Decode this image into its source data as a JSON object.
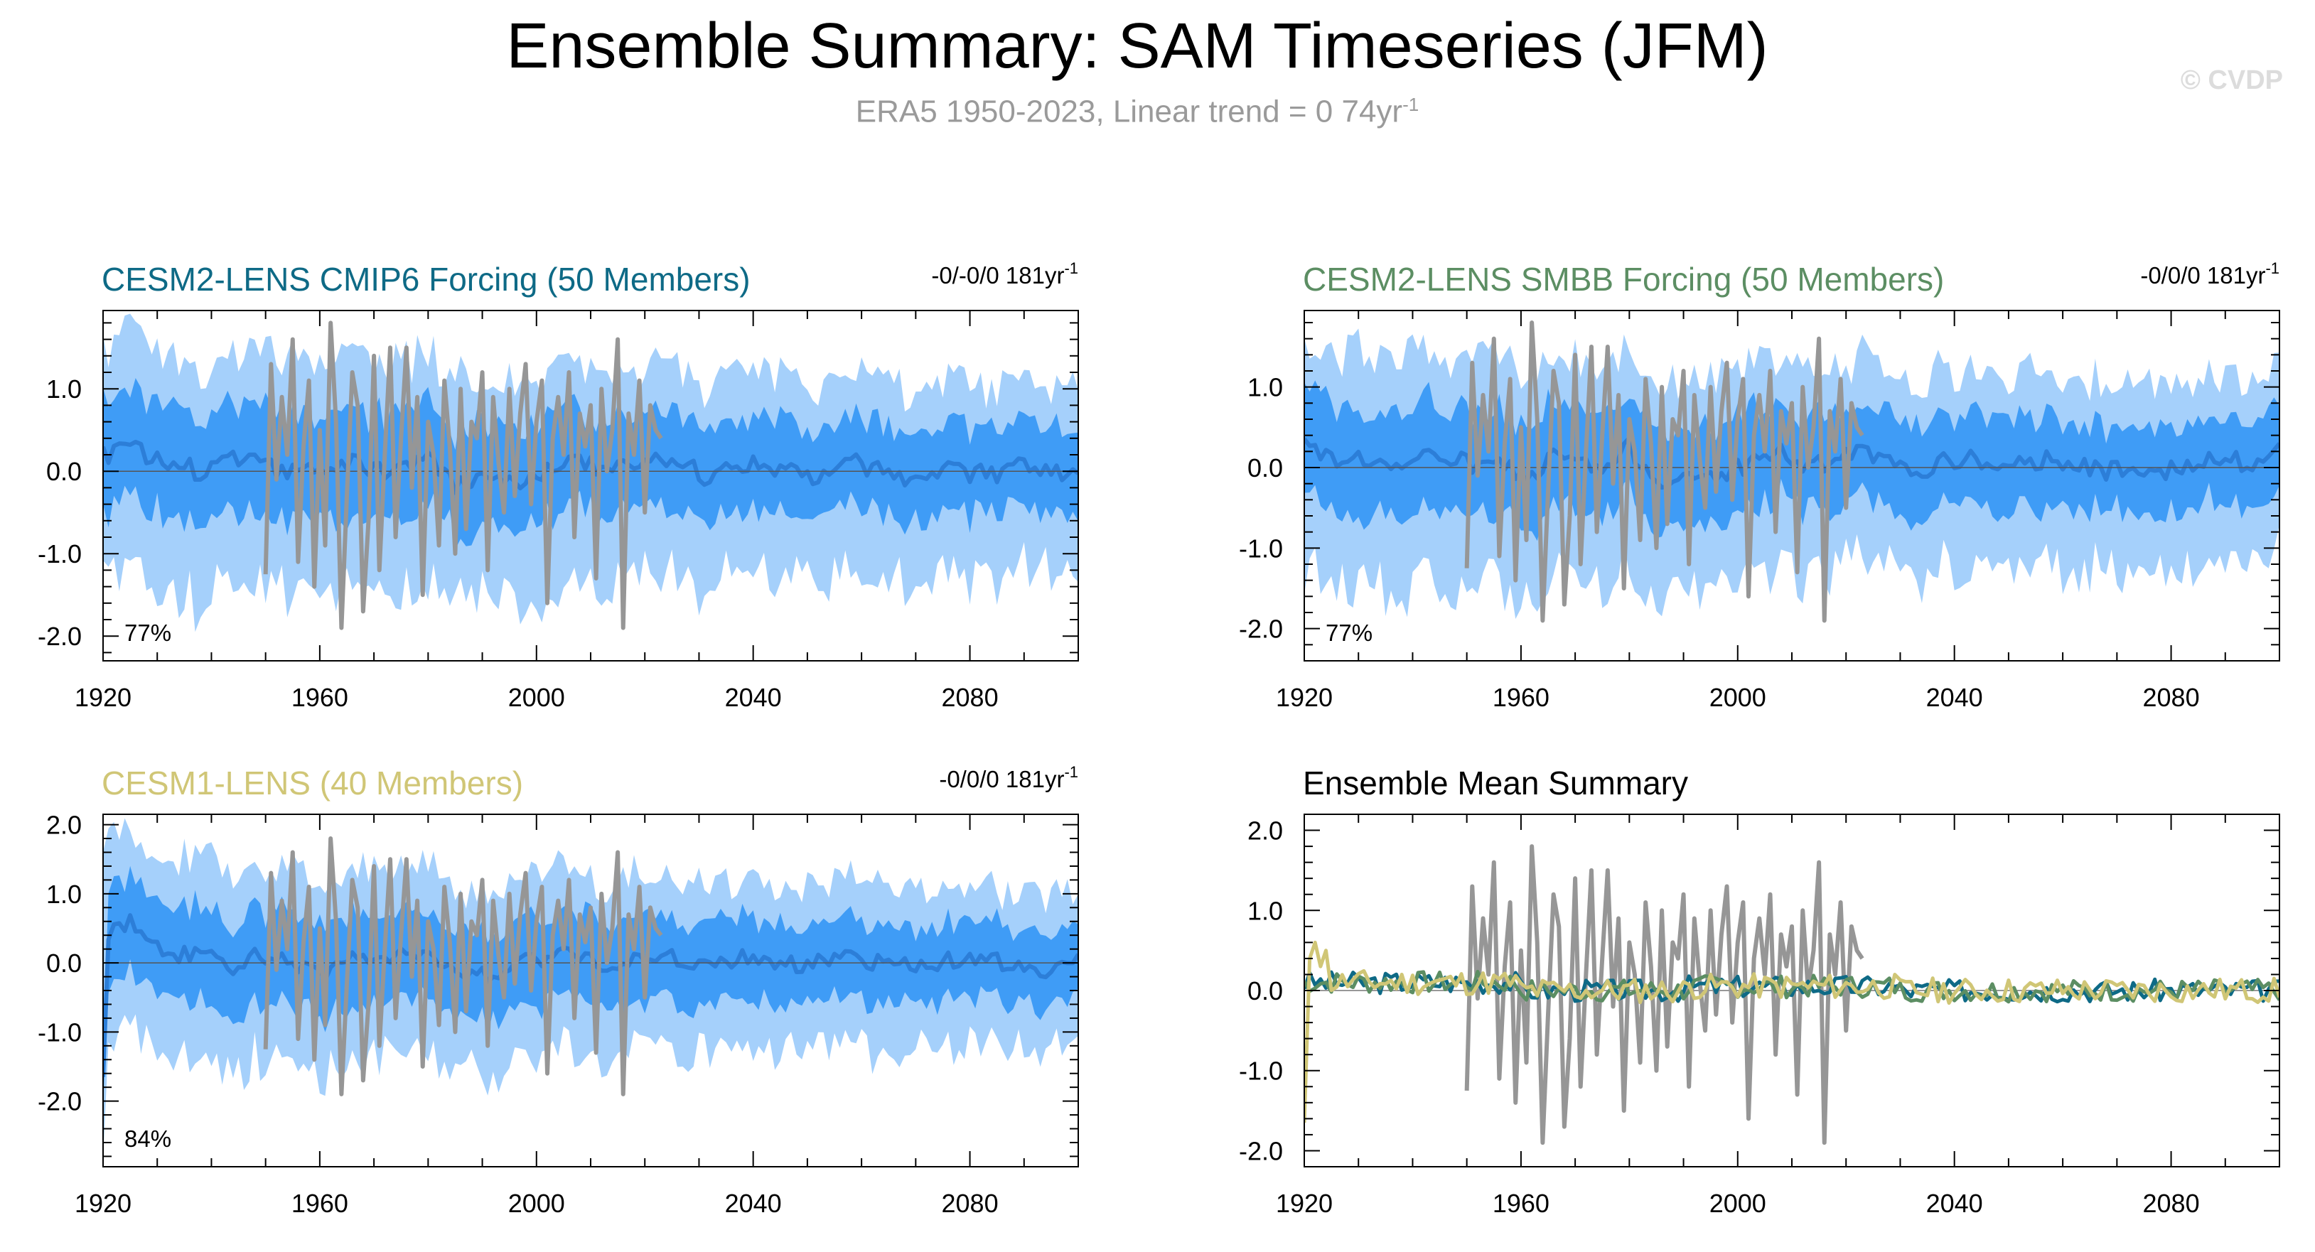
{
  "figure": {
    "title": "Ensemble Summary: SAM Timeseries (JFM)",
    "subtitle": "ERA5 1950-2023, Linear trend = 0 74yr",
    "subtitle_sup": "-1",
    "watermark": "© CVDP"
  },
  "colors": {
    "outer_band": "#a5d0fb",
    "inner_band": "#3f9cf6",
    "ens_mean": "#2c7ed8",
    "observed": "#969696",
    "cmip6": "#0e6a86",
    "smbb": "#5c8e63",
    "cesm1": "#d0c676",
    "summary_title": "#000000"
  },
  "chart_data": [
    {
      "type": "area",
      "title": "CESM2-LENS CMIP6 Forcing (50 Members)",
      "trend_label": "-0/-0/0 181yr",
      "trend_sup": "-1",
      "percent_label": "77%",
      "xlim": [
        1920,
        2100
      ],
      "ylim": [
        -2.3,
        1.95
      ],
      "xticks": [
        1920,
        1960,
        2000,
        2040,
        2080
      ],
      "xtick_labels": [
        "1920",
        "1960",
        "2000",
        "2040",
        "2080"
      ],
      "yticks": [
        1.0,
        0.0,
        -1.0,
        -2.0
      ],
      "ytick_labels": [
        "1.0",
        "0.0",
        "-1.0",
        "-2.0"
      ],
      "outer_band": {
        "upper": 1.35,
        "lower": -1.6
      },
      "inner_band": {
        "upper": 0.7,
        "lower": -0.65
      },
      "ensemble_mean": [
        0.2,
        0.3,
        0.15,
        0.1,
        -0.05,
        0.15,
        0.1,
        0.05,
        0.0,
        -0.05,
        0.1,
        0.05,
        0.0,
        0.2,
        -0.15,
        -0.1,
        -0.2,
        -0.1,
        0.1,
        0.15,
        0.05,
        0.0,
        0.25,
        0.1,
        -0.05,
        0.05,
        0.15,
        0.05,
        -0.05,
        0.0,
        0.1,
        0.05,
        -0.1,
        0.0,
        0.05,
        -0.05,
        0.0,
        0.05,
        0.0,
        -0.05
      ],
      "observed": {
        "start_year": 1950,
        "values": [
          -1.25,
          1.3,
          -0.1,
          0.9,
          0.2,
          1.6,
          -1.1,
          0.3,
          1.1,
          -1.4,
          0.5,
          -0.9,
          1.8,
          0.6,
          -1.9,
          -0.3,
          1.2,
          0.8,
          -1.7,
          -0.6,
          1.4,
          -1.2,
          0.2,
          1.5,
          -0.8,
          0.4,
          1.5,
          -0.2,
          0.9,
          -1.5,
          0.6,
          0.2,
          -0.9,
          1.1,
          0.3,
          -1.0,
          1.0,
          -0.7,
          0.6,
          0.4,
          1.2,
          -1.2,
          0.9,
          0.1,
          -0.5,
          1.0,
          -0.3,
          0.7,
          1.3,
          -0.4,
          0.6,
          1.1,
          -1.6,
          0.4,
          0.9,
          0.2,
          1.2,
          -0.8,
          0.7,
          0.3,
          0.8,
          -1.3,
          1.0,
          0.0,
          0.5,
          1.6,
          -1.9,
          0.7,
          0.2,
          1.1,
          -0.5,
          0.8,
          0.5,
          0.4
        ]
      }
    },
    {
      "type": "area",
      "title": "CESM2-LENS SMBB Forcing (50 Members)",
      "trend_label": "-0/0/0 181yr",
      "trend_sup": "-1",
      "percent_label": "77%",
      "xlim": [
        1920,
        2100
      ],
      "ylim": [
        -2.4,
        1.95
      ],
      "xticks": [
        1920,
        1960,
        2000,
        2040,
        2080
      ],
      "xtick_labels": [
        "1920",
        "1960",
        "2000",
        "2040",
        "2080"
      ],
      "yticks": [
        1.0,
        0.0,
        -1.0,
        -2.0
      ],
      "ytick_labels": [
        "1.0",
        "0.0",
        "-1.0",
        "-2.0"
      ],
      "outer_band": {
        "upper": 1.35,
        "lower": -1.6
      },
      "inner_band": {
        "upper": 0.7,
        "lower": -0.65
      },
      "ensemble_mean": [
        0.3,
        0.1,
        0.15,
        0.05,
        -0.1,
        0.2,
        0.1,
        0.0,
        0.05,
        -0.15,
        0.15,
        0.05,
        -0.05,
        0.25,
        -0.1,
        -0.2,
        -0.1,
        -0.05,
        0.1,
        0.2,
        0.0,
        0.05,
        0.2,
        0.1,
        -0.05,
        0.0,
        0.1,
        0.1,
        -0.05,
        0.05,
        0.15,
        0.0,
        -0.05,
        0.05,
        0.0,
        -0.05,
        0.05,
        0.1,
        0.0,
        0.25
      ],
      "observed": {
        "start_year": 1950,
        "values": [
          -1.25,
          1.3,
          -0.1,
          0.9,
          0.2,
          1.6,
          -1.1,
          0.3,
          1.1,
          -1.4,
          0.5,
          -0.9,
          1.8,
          0.6,
          -1.9,
          -0.3,
          1.2,
          0.8,
          -1.7,
          -0.6,
          1.4,
          -1.2,
          0.2,
          1.5,
          -0.8,
          0.4,
          1.5,
          -0.2,
          0.9,
          -1.5,
          0.6,
          0.2,
          -0.9,
          1.1,
          0.3,
          -1.0,
          1.0,
          -0.7,
          0.6,
          0.4,
          1.2,
          -1.2,
          0.9,
          0.1,
          -0.5,
          1.0,
          -0.3,
          0.7,
          1.3,
          -0.4,
          0.6,
          1.1,
          -1.6,
          0.4,
          0.9,
          0.2,
          1.2,
          -0.8,
          0.7,
          0.3,
          0.8,
          -1.3,
          1.0,
          0.0,
          0.5,
          1.6,
          -1.9,
          0.7,
          0.2,
          1.1,
          -0.5,
          0.8,
          0.5,
          0.4
        ]
      }
    },
    {
      "type": "area",
      "title": "CESM1-LENS (40 Members)",
      "trend_label": "-0/0/0 181yr",
      "trend_sup": "-1",
      "percent_label": "84%",
      "xlim": [
        1920,
        2100
      ],
      "ylim": [
        -2.95,
        2.15
      ],
      "xticks": [
        1920,
        1960,
        2000,
        2040,
        2080
      ],
      "xtick_labels": [
        "1920",
        "1960",
        "2000",
        "2040",
        "2080"
      ],
      "yticks": [
        2.0,
        1.0,
        0.0,
        -1.0,
        -2.0
      ],
      "ytick_labels": [
        "2.0",
        "1.0",
        "0.0",
        "-1.0",
        "-2.0"
      ],
      "outer_band": {
        "upper": 1.4,
        "lower": -1.55
      },
      "inner_band": {
        "upper": 0.7,
        "lower": -0.7
      },
      "first_year_mean": -1.65,
      "ensemble_mean": [
        0.4,
        0.6,
        0.3,
        0.1,
        0.2,
        -0.1,
        0.15,
        0.05,
        -0.05,
        -0.15,
        0.1,
        0.0,
        0.1,
        0.2,
        -0.1,
        -0.2,
        -0.1,
        0.05,
        0.1,
        0.15,
        0.0,
        0.05,
        0.1,
        0.05,
        0.0,
        0.05,
        0.1,
        0.0,
        -0.05,
        0.05,
        0.1,
        0.0,
        -0.05,
        0.0,
        0.05,
        0.05,
        0.0,
        -0.05,
        -0.1,
        0.05
      ],
      "observed": {
        "start_year": 1950,
        "values": [
          -1.25,
          1.3,
          -0.1,
          0.9,
          0.2,
          1.6,
          -1.1,
          0.3,
          1.1,
          -1.4,
          0.5,
          -0.9,
          1.8,
          0.6,
          -1.9,
          -0.3,
          1.2,
          0.8,
          -1.7,
          -0.6,
          1.4,
          -1.2,
          0.2,
          1.5,
          -0.8,
          0.4,
          1.5,
          -0.2,
          0.9,
          -1.5,
          0.6,
          0.2,
          -0.9,
          1.1,
          0.3,
          -1.0,
          1.0,
          -0.7,
          0.6,
          0.4,
          1.2,
          -1.2,
          0.9,
          0.1,
          -0.5,
          1.0,
          -0.3,
          0.7,
          1.3,
          -0.4,
          0.6,
          1.1,
          -1.6,
          0.4,
          0.9,
          0.2,
          1.2,
          -0.8,
          0.7,
          0.3,
          0.8,
          -1.3,
          1.0,
          0.0,
          0.5,
          1.6,
          -1.9,
          0.7,
          0.2,
          1.1,
          -0.5,
          0.8,
          0.5,
          0.4
        ]
      }
    },
    {
      "type": "line",
      "title": "Ensemble Mean Summary",
      "xlim": [
        1920,
        2100
      ],
      "ylim": [
        -2.2,
        2.2
      ],
      "xticks": [
        1920,
        1960,
        2000,
        2040,
        2080
      ],
      "xtick_labels": [
        "1920",
        "1960",
        "2000",
        "2040",
        "2080"
      ],
      "yticks": [
        2.0,
        1.0,
        0.0,
        -1.0,
        -2.0
      ],
      "ytick_labels": [
        "2.0",
        "1.0",
        "0.0",
        "-1.0",
        "-2.0"
      ],
      "series": [
        {
          "color_key": "cmip6",
          "amplitude": 0.14,
          "seed": 3
        },
        {
          "color_key": "smbb",
          "amplitude": 0.14,
          "seed": 7
        },
        {
          "color_key": "cesm1",
          "amplitude": 0.16,
          "seed": 11,
          "first_value": -1.65,
          "early": [
            0.4,
            0.6,
            0.3,
            0.5
          ]
        }
      ],
      "observed": {
        "start_year": 1950,
        "values": [
          -1.25,
          1.3,
          -0.1,
          0.9,
          0.2,
          1.6,
          -1.1,
          0.3,
          1.1,
          -1.4,
          0.5,
          -0.9,
          1.8,
          0.6,
          -1.9,
          -0.3,
          1.2,
          0.8,
          -1.7,
          -0.6,
          1.4,
          -1.2,
          0.2,
          1.5,
          -0.8,
          0.4,
          1.5,
          -0.2,
          0.9,
          -1.5,
          0.6,
          0.2,
          -0.9,
          1.1,
          0.3,
          -1.0,
          1.0,
          -0.7,
          0.6,
          0.4,
          1.2,
          -1.2,
          0.9,
          0.1,
          -0.5,
          1.0,
          -0.3,
          0.7,
          1.3,
          -0.4,
          0.6,
          1.1,
          -1.6,
          0.4,
          0.9,
          0.2,
          1.2,
          -0.8,
          0.7,
          0.3,
          0.8,
          -1.3,
          1.0,
          0.0,
          0.5,
          1.6,
          -1.9,
          0.7,
          0.2,
          1.1,
          -0.5,
          0.8,
          0.5,
          0.4
        ]
      }
    }
  ]
}
